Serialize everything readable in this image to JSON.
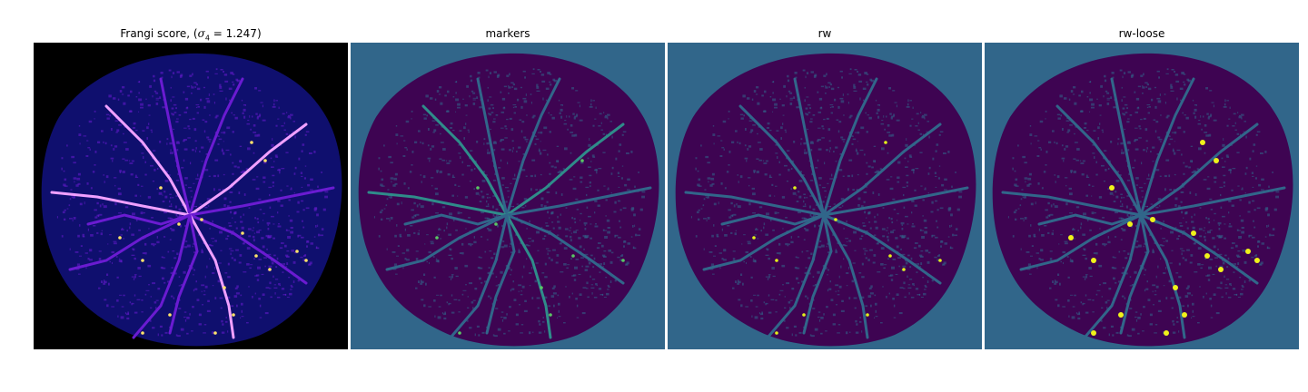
{
  "figure": {
    "panels": [
      {
        "id": "frangi",
        "title_prefix": "Frangi score, (",
        "title_math": "σ",
        "title_sub": "4",
        "title_value": " = 1.247)",
        "colors": {
          "background": "#000000",
          "fill": "#0f0f6e",
          "vessel": "#6a1bd1",
          "hot": "#f0a0ff",
          "peak": "#ffe36b"
        }
      },
      {
        "id": "markers",
        "title": "markers",
        "colors": {
          "background": "#31668a",
          "fill": "#3e0452",
          "vessel": "#31668a",
          "hot": "#2f8c8a",
          "peak": "#5ac864"
        }
      },
      {
        "id": "rw",
        "title": "rw",
        "colors": {
          "background": "#31668a",
          "fill": "#3e0452",
          "vessel": "#31668a",
          "hot": "#31668a",
          "peak": "#e4f21a"
        }
      },
      {
        "id": "rw-loose",
        "title": "rw-loose",
        "colors": {
          "background": "#31668a",
          "fill": "#3e0452",
          "vessel": "#31668a",
          "hot": "#31668a",
          "peak": "#f0f21a"
        }
      }
    ]
  }
}
